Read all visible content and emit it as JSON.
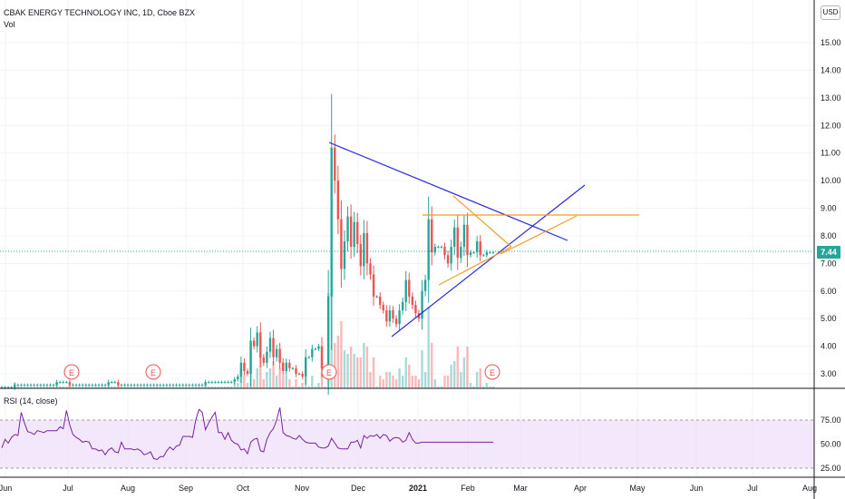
{
  "header": {
    "title": "CBAK ENERGY TECHNOLOGY INC, 1D, Cboe BZX",
    "volume_label": "Vol"
  },
  "currency_button": "USD",
  "last_price_tag": "7.44",
  "rsi_panel": {
    "label": "RSI (14, close)",
    "ticks": [
      "75.00",
      "50.00",
      "25.00"
    ]
  },
  "earnings_markers": [
    "E",
    "E",
    "E",
    "E"
  ],
  "colors": {
    "up": "#26a69a",
    "down": "#ef5350",
    "trendline": "#2b2be0",
    "pattern": "#f59a23",
    "rsi_line": "#7b1fa2",
    "rsi_band": "#e9d5f7"
  },
  "chart_data": {
    "type": "candlestick",
    "symbol": "CBAK ENERGY TECHNOLOGY INC",
    "interval": "1D",
    "exchange": "Cboe BZX",
    "price_axis": {
      "ticks": [
        "15.00",
        "14.00",
        "13.00",
        "12.00",
        "11.00",
        "10.00",
        "9.00",
        "8.00",
        "7.00",
        "6.00",
        "5.00",
        "4.00",
        "3.00"
      ],
      "range": [
        2.5,
        16.0
      ]
    },
    "time_axis": {
      "ticks": [
        "Jun",
        "Jul",
        "Aug",
        "Sep",
        "Oct",
        "Nov",
        "Dec",
        "2021",
        "Feb",
        "Mar",
        "Apr",
        "May",
        "Jun",
        "Jul",
        "Aug"
      ]
    },
    "last_price": 7.44,
    "closes": [
      2.5,
      2.5,
      2.5,
      2.5,
      2.6,
      2.6,
      2.6,
      2.6,
      2.6,
      2.6,
      2.6,
      2.6,
      2.6,
      2.6,
      2.6,
      2.6,
      2.6,
      2.7,
      2.7,
      2.7,
      2.7,
      2.6,
      2.6,
      2.6,
      2.6,
      2.6,
      2.6,
      2.6,
      2.6,
      2.6,
      2.6,
      2.6,
      2.6,
      2.7,
      2.7,
      2.7,
      2.6,
      2.6,
      2.6,
      2.6,
      2.6,
      2.6,
      2.6,
      2.6,
      2.6,
      2.6,
      2.6,
      2.6,
      2.6,
      2.6,
      2.6,
      2.6,
      2.6,
      2.6,
      2.6,
      2.6,
      2.6,
      2.6,
      2.6,
      2.6,
      2.6,
      2.6,
      2.6,
      2.7,
      2.7,
      2.7,
      2.7,
      2.7,
      2.7,
      2.7,
      2.7,
      2.7,
      2.8,
      2.9,
      3.4,
      3.1,
      3.0,
      4.2,
      4.0,
      4.5,
      3.6,
      3.4,
      3.8,
      4.3,
      3.6,
      3.9,
      3.4,
      3.1,
      3.4,
      3.2,
      3.2,
      3.0,
      3.0,
      2.9,
      3.6,
      3.6,
      3.9,
      3.9,
      4.0,
      3.2,
      3.2,
      5.8,
      11.2,
      10.0,
      8.6,
      6.8,
      7.8,
      8.7,
      7.6,
      8.5,
      7.7,
      6.9,
      8.1,
      7.0,
      6.6,
      5.8,
      5.8,
      5.5,
      5.3,
      4.9,
      5.3,
      5.0,
      4.8,
      5.3,
      5.6,
      6.4,
      5.8,
      5.5,
      5.2,
      5.0,
      6.0,
      6.4,
      8.6,
      7.4,
      7.6,
      7.6,
      7.6,
      7.3,
      7.0,
      7.6,
      8.3,
      7.2,
      7.6,
      8.4,
      7.3,
      7.4,
      7.4,
      7.8,
      7.3,
      7.3,
      7.4,
      7.4,
      7.4
    ],
    "rsi": {
      "range": [
        20,
        90
      ],
      "values": [
        46,
        55,
        51,
        57,
        60,
        59,
        83,
        72,
        63,
        62,
        60,
        64,
        63,
        62,
        64,
        64,
        64,
        64,
        68,
        66,
        85,
        70,
        60,
        57,
        55,
        52,
        53,
        52,
        45,
        45,
        43,
        44,
        39,
        44,
        46,
        42,
        41,
        52,
        45,
        45,
        45,
        44,
        45,
        43,
        39,
        40,
        42,
        35,
        34,
        37,
        37,
        43,
        47,
        44,
        48,
        49,
        58,
        58,
        58,
        57,
        75,
        86,
        83,
        65,
        72,
        78,
        83,
        62,
        62,
        55,
        62,
        54,
        51,
        50,
        44,
        45,
        40,
        52,
        55,
        56,
        43,
        42,
        55,
        62,
        66,
        75,
        88,
        62,
        59,
        58,
        56,
        55,
        59,
        55,
        52,
        51,
        51,
        51,
        47,
        46,
        46,
        48,
        56,
        51,
        46,
        45,
        45,
        45,
        52,
        52,
        54,
        46,
        59,
        56,
        59,
        58,
        60,
        56,
        60,
        59,
        53,
        56,
        57,
        56,
        52,
        54,
        62,
        55,
        51,
        51,
        52,
        52,
        52,
        52,
        52,
        52,
        52,
        52,
        52,
        52,
        52,
        52,
        52,
        52,
        52,
        52,
        52,
        52,
        52,
        52,
        52,
        52,
        52,
        52
      ]
    }
  }
}
